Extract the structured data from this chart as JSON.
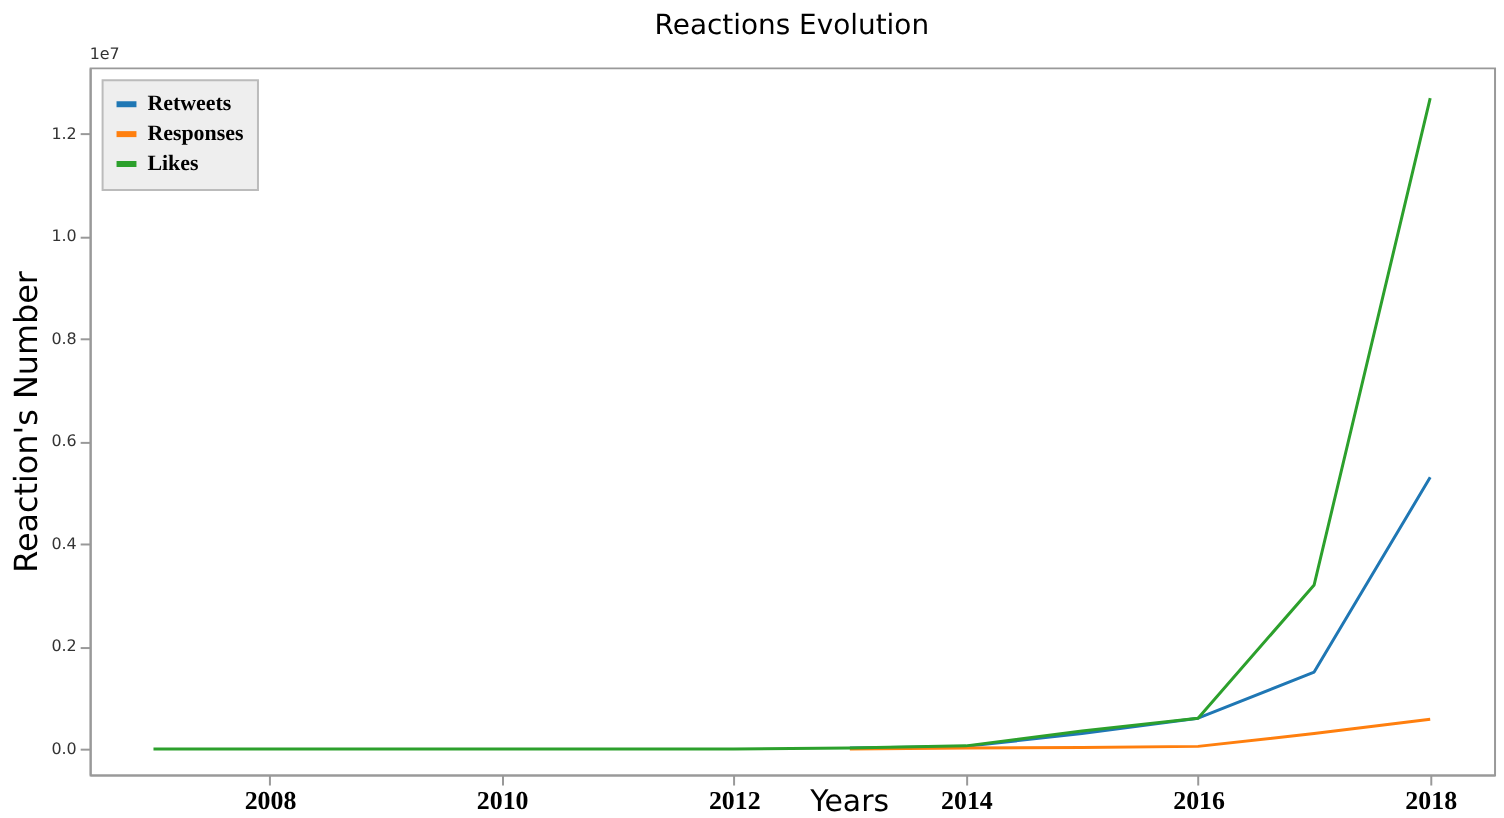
{
  "chart_data": {
    "type": "line",
    "title": "Reactions Evolution",
    "xlabel": "Years",
    "ylabel": "Reaction's Number",
    "annotations": [
      "1e7"
    ],
    "x": [
      2007,
      2008,
      2009,
      2010,
      2011,
      2012,
      2013,
      2014,
      2015,
      2016,
      2017,
      2018
    ],
    "series": [
      {
        "name": "Retweets",
        "color": "#1f77b4",
        "values": [
          null,
          null,
          null,
          null,
          null,
          null,
          0.002,
          0.005,
          0.03,
          0.06,
          0.15,
          0.53
        ]
      },
      {
        "name": "Responses",
        "color": "#ff7f0e",
        "values": [
          null,
          null,
          null,
          null,
          null,
          null,
          0,
          0.002,
          0.003,
          0.005,
          0.03,
          0.058
        ]
      },
      {
        "name": "Likes",
        "color": "#2ca02c",
        "values": [
          0,
          0,
          0,
          0,
          0,
          0,
          0.002,
          0.006,
          0.035,
          0.06,
          0.32,
          1.27
        ]
      }
    ],
    "xlim": [
      2006.45,
      2018.55
    ],
    "xticks": [
      2008,
      2010,
      2012,
      2014,
      2016,
      2018
    ],
    "ylim": [
      -0.05,
      1.33
    ],
    "yticks": [
      {
        "value": 0,
        "label": "0.0"
      },
      0.2,
      0.4,
      0.6,
      0.8,
      {
        "value": 1,
        "label": "1.0"
      },
      1.2
    ],
    "legend": "top left",
    "grid": false,
    "marker": "none",
    "line_style": "solid"
  }
}
